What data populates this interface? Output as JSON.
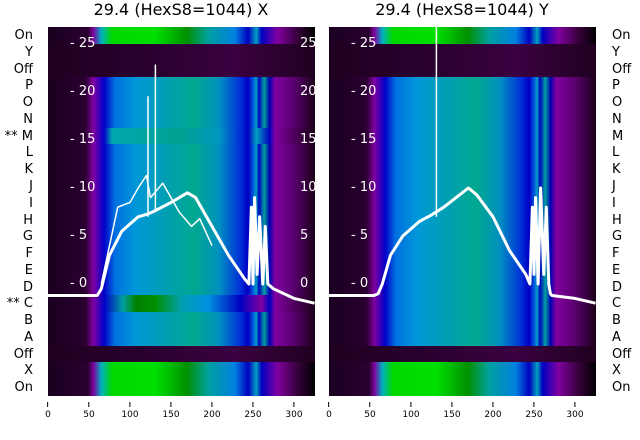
{
  "titles": [
    "29.4 (HexS8=1044) X",
    "29.4 (HexS8=1044) Y"
  ],
  "left_row_labels": [
    "On",
    "Y",
    "Off",
    "P",
    "O",
    "N",
    "** M",
    "L",
    "K",
    "J",
    "I",
    "H",
    "G",
    "F",
    "E",
    "D",
    "** C",
    "B",
    "A",
    "Off",
    "X",
    "On"
  ],
  "right_row_labels": [
    "On",
    "Y",
    "Off",
    "P",
    "O",
    "N",
    "M",
    "L",
    "K",
    "J",
    "I",
    "H",
    "G",
    "F",
    "E",
    "D",
    "C",
    "B",
    "A",
    "Off",
    "X",
    "On"
  ],
  "chart_data": [
    {
      "type": "heatmap",
      "title": "29.4 (HexS8=1044) X",
      "xlim": [
        0,
        325
      ],
      "ylim": [
        -11.7,
        26.8
      ],
      "x_ticks": [
        "0",
        "50",
        "100",
        "150",
        "200",
        "250",
        "300"
      ],
      "y_ticks": [
        "25",
        "20",
        "15",
        "10",
        "5",
        "0"
      ],
      "series": [
        {
          "name": "main",
          "x": [
            0,
            60,
            65,
            75,
            90,
            110,
            122,
            130,
            150,
            170,
            180,
            200,
            220,
            240,
            245,
            248,
            250,
            252,
            255,
            258,
            262,
            265,
            268,
            275,
            300,
            325
          ],
          "y": [
            -1.2,
            -1.2,
            -0.5,
            3,
            5.5,
            7,
            7.3,
            7.6,
            8.5,
            9.5,
            9,
            6,
            3,
            0.5,
            0,
            8,
            0,
            9,
            1,
            7,
            0,
            6,
            0,
            -0.5,
            -1.5,
            -2
          ]
        },
        {
          "name": "alt",
          "x": [
            65,
            75,
            85,
            100,
            110,
            120,
            125,
            140,
            160,
            175,
            185,
            200
          ],
          "y": [
            0,
            4,
            8,
            8.5,
            10,
            11.3,
            9,
            10.5,
            7.5,
            6,
            6.8,
            4
          ]
        },
        {
          "name": "spike1",
          "x": [
            122,
            122,
            122
          ],
          "y": [
            7,
            19.5,
            7
          ]
        },
        {
          "name": "spike2",
          "x": [
            131,
            131,
            131
          ],
          "y": [
            7.5,
            22.8,
            7.5
          ]
        }
      ]
    },
    {
      "type": "heatmap",
      "title": "29.4 (HexS8=1044) Y",
      "xlim": [
        0,
        325
      ],
      "ylim": [
        -11.7,
        26.8
      ],
      "x_ticks": [
        "0",
        "50",
        "100",
        "150",
        "200",
        "250",
        "300"
      ],
      "y_ticks": [
        "25",
        "20",
        "15",
        "10",
        "5",
        "0"
      ],
      "series": [
        {
          "name": "main",
          "x": [
            0,
            55,
            60,
            65,
            75,
            90,
            110,
            125,
            140,
            155,
            170,
            180,
            200,
            220,
            240,
            245,
            248,
            250,
            252,
            255,
            258,
            262,
            265,
            268,
            270,
            272,
            300,
            325
          ],
          "y": [
            -1.2,
            -1.2,
            -1,
            0,
            3,
            5,
            6.5,
            7.2,
            8,
            9,
            10,
            9.3,
            7,
            3.5,
            1,
            0,
            8,
            1,
            9,
            0,
            10,
            1,
            8,
            0,
            -1,
            -1.2,
            -1.5,
            -2
          ]
        },
        {
          "name": "spike",
          "x": [
            131,
            131,
            131
          ],
          "y": [
            7,
            26.8,
            7
          ]
        }
      ]
    }
  ],
  "colors": {
    "line": "#ffffff",
    "on_row": "#00e000",
    "off_row": "#2a0030",
    "body": "#0090d0"
  }
}
